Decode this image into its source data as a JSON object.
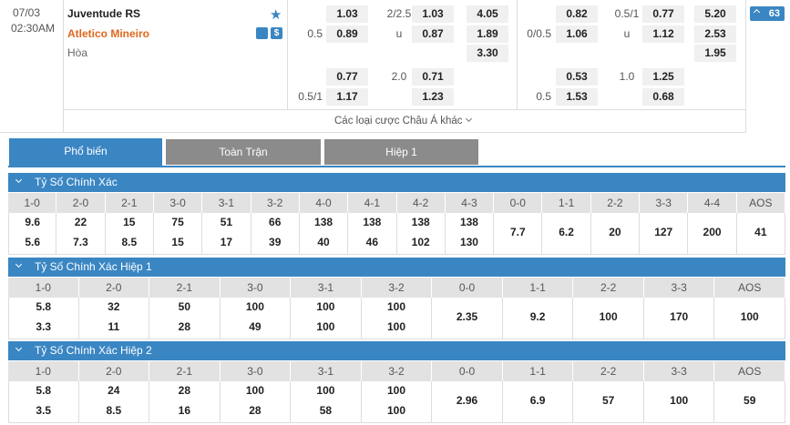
{
  "match": {
    "date": "07/03",
    "time": "02:30AM",
    "home": "Juventude RS",
    "away": "Atletico Mineiro",
    "draw": "Hòa",
    "count": "63",
    "full_time": [
      {
        "odds": "1.03",
        "total_line": "2/2.5",
        "total_odds": "1.03",
        "result": "4.05"
      },
      {
        "line": "0.5",
        "odds": "0.89",
        "total_line": "u",
        "total_odds": "0.87",
        "result": "1.89"
      },
      {
        "result": "3.30"
      },
      {
        "odds": "0.77",
        "total_line": "2.0",
        "total_odds": "0.71"
      },
      {
        "line": "0.5/1",
        "odds": "1.17",
        "total_odds": "1.23"
      }
    ],
    "first_half": [
      {
        "odds": "0.82",
        "total_line": "0.5/1",
        "total_odds": "0.77",
        "result": "5.20"
      },
      {
        "line": "0/0.5",
        "odds": "1.06",
        "total_line": "u",
        "total_odds": "1.12",
        "result": "2.53"
      },
      {
        "result": "1.95"
      },
      {
        "odds": "0.53",
        "total_line": "1.0",
        "total_odds": "1.25"
      },
      {
        "line": "0.5",
        "odds": "1.53",
        "total_odds": "0.68"
      }
    ],
    "more": "Các loại cược Châu Á khác"
  },
  "tabs": [
    "Phổ biến",
    "Toàn Trận",
    "Hiệp 1"
  ],
  "sections": [
    {
      "title": "Tỷ Số Chính Xác",
      "columns": [
        {
          "score": "1-0",
          "odds": [
            "9.6",
            "5.6"
          ]
        },
        {
          "score": "2-0",
          "odds": [
            "22",
            "7.3"
          ]
        },
        {
          "score": "2-1",
          "odds": [
            "15",
            "8.5"
          ]
        },
        {
          "score": "3-0",
          "odds": [
            "75",
            "15"
          ]
        },
        {
          "score": "3-1",
          "odds": [
            "51",
            "17"
          ]
        },
        {
          "score": "3-2",
          "odds": [
            "66",
            "39"
          ]
        },
        {
          "score": "4-0",
          "odds": [
            "138",
            "40"
          ]
        },
        {
          "score": "4-1",
          "odds": [
            "138",
            "46"
          ]
        },
        {
          "score": "4-2",
          "odds": [
            "138",
            "102"
          ]
        },
        {
          "score": "4-3",
          "odds": [
            "138",
            "130"
          ]
        },
        {
          "score": "0-0",
          "odds": [
            "7.7"
          ]
        },
        {
          "score": "1-1",
          "odds": [
            "6.2"
          ]
        },
        {
          "score": "2-2",
          "odds": [
            "20"
          ]
        },
        {
          "score": "3-3",
          "odds": [
            "127"
          ]
        },
        {
          "score": "4-4",
          "odds": [
            "200"
          ]
        },
        {
          "score": "AOS",
          "odds": [
            "41"
          ]
        }
      ]
    },
    {
      "title": "Tỷ Số Chính Xác Hiệp 1",
      "columns": [
        {
          "score": "1-0",
          "odds": [
            "5.8",
            "3.3"
          ]
        },
        {
          "score": "2-0",
          "odds": [
            "32",
            "11"
          ]
        },
        {
          "score": "2-1",
          "odds": [
            "50",
            "28"
          ]
        },
        {
          "score": "3-0",
          "odds": [
            "100",
            "49"
          ]
        },
        {
          "score": "3-1",
          "odds": [
            "100",
            "100"
          ]
        },
        {
          "score": "3-2",
          "odds": [
            "100",
            "100"
          ]
        },
        {
          "score": "0-0",
          "odds": [
            "2.35"
          ]
        },
        {
          "score": "1-1",
          "odds": [
            "9.2"
          ]
        },
        {
          "score": "2-2",
          "odds": [
            "100"
          ]
        },
        {
          "score": "3-3",
          "odds": [
            "170"
          ]
        },
        {
          "score": "AOS",
          "odds": [
            "100"
          ]
        }
      ]
    },
    {
      "title": "Tỷ Số Chính Xác Hiệp 2",
      "columns": [
        {
          "score": "1-0",
          "odds": [
            "5.8",
            "3.5"
          ]
        },
        {
          "score": "2-0",
          "odds": [
            "24",
            "8.5"
          ]
        },
        {
          "score": "2-1",
          "odds": [
            "28",
            "16"
          ]
        },
        {
          "score": "3-0",
          "odds": [
            "100",
            "28"
          ]
        },
        {
          "score": "3-1",
          "odds": [
            "100",
            "58"
          ]
        },
        {
          "score": "3-2",
          "odds": [
            "100",
            "100"
          ]
        },
        {
          "score": "0-0",
          "odds": [
            "2.96"
          ]
        },
        {
          "score": "1-1",
          "odds": [
            "6.9"
          ]
        },
        {
          "score": "2-2",
          "odds": [
            "57"
          ]
        },
        {
          "score": "3-3",
          "odds": [
            "100"
          ]
        },
        {
          "score": "AOS",
          "odds": [
            "59"
          ]
        }
      ]
    }
  ]
}
